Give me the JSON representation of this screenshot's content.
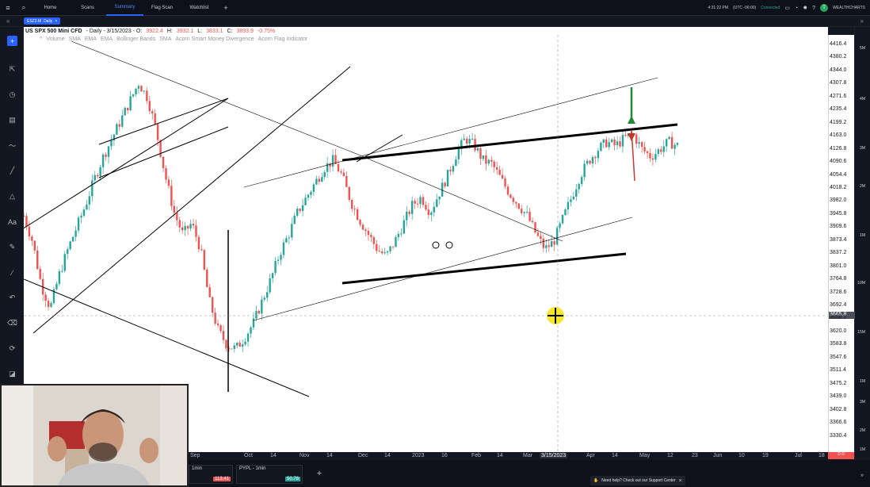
{
  "nav": {
    "tabs": [
      {
        "label": "Home"
      },
      {
        "label": "Scans"
      },
      {
        "label": "Summary"
      },
      {
        "label": "Flag Scan"
      },
      {
        "label": "Watchlist"
      }
    ],
    "add_tab": "+",
    "time": "4:31:22 PM",
    "timezone": "(UTC -06:00)",
    "connection": "Connected",
    "brand": "WEALTHCHARTS",
    "avatar_letter": "T"
  },
  "chart_tab": {
    "symbol": "ESZ3.M",
    "interval": "Daily",
    "close": "×"
  },
  "chart_header": {
    "title": "US SPX 500 Mini CFD",
    "interval_date": "- Daily - 3/15/2023 - O:",
    "open": "3922.4",
    "high_label": "H:",
    "high": "3932.1",
    "low_label": "L:",
    "low": "3833.1",
    "close_label": "C:",
    "close": "3893.9",
    "change": "-0.75%"
  },
  "indicators": [
    "Volume",
    "SMA",
    "EMA",
    "EMA",
    "Bollinger Bands",
    "SMA",
    "Acorn Smart Money Divergence",
    "Acorn Flag Indicator"
  ],
  "price_axis": {
    "labels": [
      "4416.4",
      "4380.2",
      "4344.0",
      "4307.8",
      "4271.6",
      "4235.4",
      "4199.2",
      "4163.0",
      "4126.8",
      "4090.6",
      "4054.4",
      "4018.2",
      "3982.0",
      "3945.8",
      "3909.6",
      "3873.4",
      "3837.2",
      "3801.0",
      "3764.8",
      "3728.6",
      "3692.4",
      "3656.2",
      "3620.0",
      "3583.8",
      "3547.6",
      "3511.4",
      "3475.2",
      "3439.0",
      "3402.8",
      "3366.6",
      "3330.4"
    ],
    "cursor_price": "3665.8"
  },
  "right_axis_labels": [
    "5M",
    "4M",
    "3M",
    "2M",
    "1M",
    "10M",
    "15M",
    "1M",
    "3M",
    "2M",
    "1M"
  ],
  "time_axis": {
    "labels": [
      "Sep",
      "Oct",
      "14",
      "Nov",
      "14",
      "Dec",
      "14",
      "2023",
      "16",
      "Feb",
      "14",
      "Mar",
      "Apr",
      "14",
      "May",
      "12",
      "23",
      "Jun",
      "10",
      "19",
      "Jul",
      "18"
    ],
    "cursor_date": "3/15/2023",
    "end_value": "0.0"
  },
  "mini_charts": [
    {
      "name": "1min",
      "value": "113.41",
      "color": "#ef5350"
    },
    {
      "name": "PYPL - 1min",
      "value": "50.76",
      "color": "#26a69a"
    }
  ],
  "support": {
    "text": "Need help? Check out our Support Center"
  },
  "chart_data": {
    "type": "candlestick",
    "title": "US SPX 500 Mini CFD",
    "interval": "Daily",
    "cursor_date": "3/15/2023",
    "cursor_price": 3665.8,
    "ylim": [
      3310,
      4440
    ],
    "x_ticks": [
      "Sep",
      "Oct",
      "14",
      "Nov",
      "14",
      "Dec",
      "14",
      "2023",
      "16",
      "Feb",
      "14",
      "Mar",
      "Apr",
      "14",
      "May",
      "12",
      "23",
      "Jun",
      "10",
      "19",
      "Jul",
      "18"
    ],
    "close_path": [
      3950,
      3880,
      3760,
      3700,
      3790,
      3860,
      3920,
      3980,
      4050,
      4110,
      4160,
      4210,
      4260,
      4310,
      4270,
      4180,
      4060,
      3960,
      3900,
      3930,
      3860,
      3720,
      3640,
      3600,
      3590,
      3620,
      3660,
      3720,
      3780,
      3850,
      3900,
      3960,
      4000,
      4040,
      4080,
      4100,
      4060,
      3990,
      3940,
      3900,
      3860,
      3840,
      3880,
      3930,
      3980,
      4000,
      3960,
      4010,
      4060,
      4120,
      4160,
      4140,
      4100,
      4090,
      4050,
      4010,
      3980,
      3950,
      3900,
      3860,
      3880,
      3940,
      4000,
      4060,
      4100,
      4130,
      4150,
      4140,
      4160,
      4170,
      4130,
      4110,
      4130,
      4150,
      4140
    ]
  }
}
